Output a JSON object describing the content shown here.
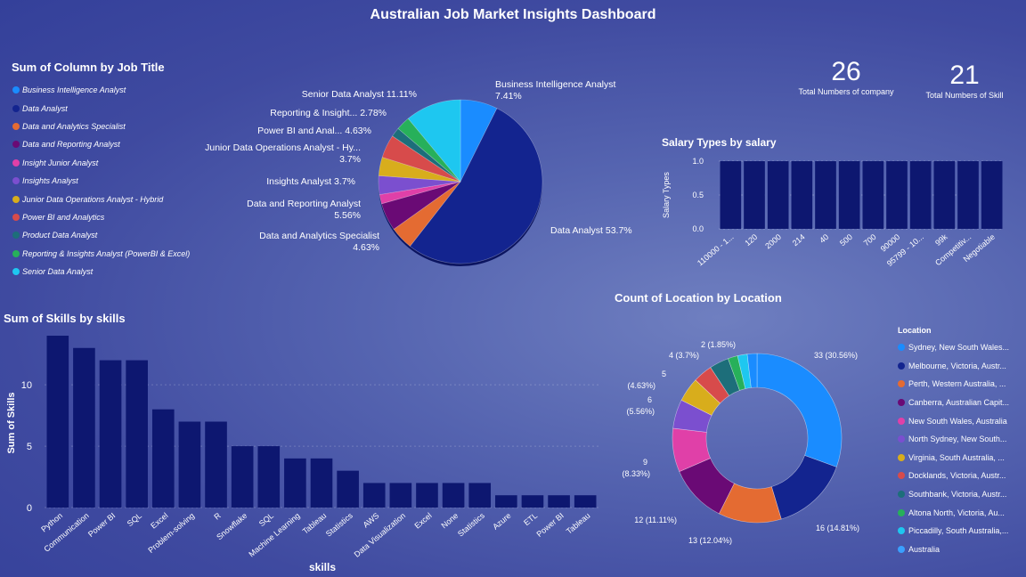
{
  "dashboard": {
    "title": "Australian Job Market Insights Dashboard"
  },
  "kpis": [
    {
      "value": "26",
      "label": "Total Numbers of company"
    },
    {
      "value": "21",
      "label": "Total Numbers of Skill"
    }
  ],
  "colors": {
    "bar": "#0d1770",
    "palette": [
      "#1a8cff",
      "#13248f",
      "#e46b32",
      "#6a0a75",
      "#e040a8",
      "#7b4fcf",
      "#d8ad1c",
      "#d74b4b",
      "#1d6e7a",
      "#27b05a",
      "#1ec7f0"
    ]
  },
  "chart_data": [
    {
      "type": "pie",
      "title": "Sum of Column by Job Title",
      "legend": [
        "Business Intelligence Analyst",
        "Data Analyst",
        "Data and Analytics Specialist",
        "Data and Reporting Analyst",
        "Insight Junior Analyst",
        "Insights Analyst",
        "Junior Data Operations Analyst - Hybrid",
        "Power BI and Analytics",
        "Product Data Analyst",
        "Reporting & Insights Analyst (PowerBI & Excel)",
        "Senior Data Analyst"
      ],
      "slices": [
        {
          "name": "Business Intelligence Analyst",
          "value": 7.41,
          "label": "Business Intelligence Analyst",
          "pct": "7.41%"
        },
        {
          "name": "Data Analyst",
          "value": 53.7,
          "label": "Data Analyst",
          "pct": "53.7%"
        },
        {
          "name": "Data and Analytics Specialist",
          "value": 4.63,
          "label": "Data and Analytics Specialist",
          "pct": "4.63%"
        },
        {
          "name": "Data and Reporting Analyst",
          "value": 5.56,
          "label": "Data and Reporting Analyst",
          "pct": "5.56%"
        },
        {
          "name": "Insight Junior Analyst",
          "value": 1.85,
          "label": "",
          "pct": ""
        },
        {
          "name": "Insights Analyst",
          "value": 3.7,
          "label": "Insights Analyst",
          "pct": "3.7%"
        },
        {
          "name": "Junior Data Operations Analyst - Hybrid",
          "value": 3.7,
          "label": "Junior Data Operations Analyst - Hy...",
          "pct": "3.7%"
        },
        {
          "name": "Power BI and Analytics",
          "value": 4.63,
          "label": "Power BI and Anal...",
          "pct": "4.63%"
        },
        {
          "name": "Product Data Analyst",
          "value": 1.85,
          "label": "",
          "pct": ""
        },
        {
          "name": "Reporting & Insights Analyst (PowerBI & Excel)",
          "value": 2.78,
          "label": "Reporting & Insight...",
          "pct": "2.78%"
        },
        {
          "name": "Senior Data Analyst",
          "value": 11.11,
          "label": "Senior Data Analyst",
          "pct": "11.11%"
        }
      ]
    },
    {
      "type": "bar",
      "title": "Salary Types by salary",
      "xlabel": "",
      "ylabel": "Salary Types",
      "ylim": [
        0,
        1.0
      ],
      "yticks": [
        "0.0",
        "0.5",
        "1.0"
      ],
      "categories": [
        "110000 - 1...",
        "120",
        "2000",
        "214",
        "40",
        "500",
        "700",
        "90000",
        "95799 - 10...",
        "99k",
        "Competitiv...",
        "Negotiable"
      ],
      "values": [
        1,
        1,
        1,
        1,
        1,
        1,
        1,
        1,
        1,
        1,
        1,
        1
      ]
    },
    {
      "type": "bar",
      "title": "Sum of Skills by skills",
      "xlabel": "skills",
      "ylabel": "Sum of Skills",
      "ylim": [
        0,
        14
      ],
      "yticks": [
        "0",
        "5",
        "10"
      ],
      "categories": [
        "Python",
        "Communication",
        "Power BI",
        "SQL",
        "Excel",
        "Problem-solving",
        "R",
        "Snowflake",
        "SQL",
        "Machine Learning",
        "Tableau",
        "Statistics",
        "AWS",
        "Data Visualization",
        "Excel",
        "None",
        "Statistics",
        "Azure",
        "ETL",
        "Power BI",
        "Tableau"
      ],
      "values": [
        14,
        13,
        12,
        12,
        8,
        7,
        7,
        5,
        5,
        4,
        4,
        3,
        2,
        2,
        2,
        2,
        2,
        1,
        1,
        1,
        1
      ]
    },
    {
      "type": "pie",
      "title": "Count of Location by Location",
      "legend_title": "Location",
      "legend": [
        "Sydney, New South Wales...",
        "Melbourne, Victoria, Austr...",
        "Perth, Western Australia, ...",
        "Canberra, Australian Capit...",
        "New South Wales, Australia",
        "North Sydney, New South...",
        "Virginia, South Australia, ...",
        "Docklands, Victoria, Austr...",
        "Southbank, Victoria, Austr...",
        "Altona North, Victoria, Au...",
        "Piccadilly, South Australia,...",
        "Australia"
      ],
      "slices": [
        {
          "value": 33,
          "label": "33 (30.56%)"
        },
        {
          "value": 16,
          "label": "16 (14.81%)"
        },
        {
          "value": 13,
          "label": "13 (12.04%)"
        },
        {
          "value": 12,
          "label": "12 (11.11%)"
        },
        {
          "value": 9,
          "label": "9",
          "pct": "(8.33%)"
        },
        {
          "value": 6,
          "label": "6",
          "pct": "(5.56%)"
        },
        {
          "value": 5,
          "label": "5",
          "pct": "(4.63%)"
        },
        {
          "value": 4,
          "label": "4 (3.7%)"
        },
        {
          "value": 4,
          "label": ""
        },
        {
          "value": 2,
          "label": "2 (1.85%)"
        },
        {
          "value": 2,
          "label": ""
        },
        {
          "value": 2,
          "label": ""
        }
      ]
    }
  ]
}
